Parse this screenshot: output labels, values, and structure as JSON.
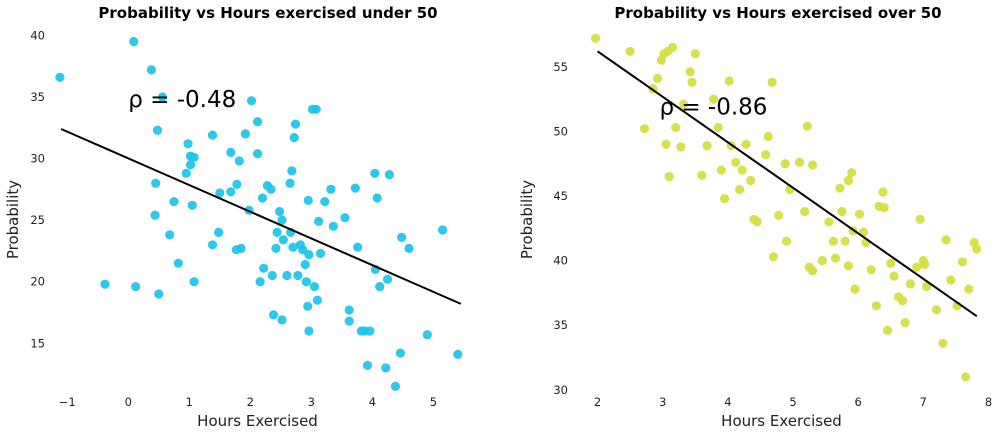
{
  "chart_data": [
    {
      "type": "scatter",
      "title": "Probability vs Hours exercised under 50",
      "xlabel": "Hours Exercised",
      "ylabel": "Probability",
      "xlim": [
        -1.2,
        5.6
      ],
      "ylim": [
        10.8,
        40.6
      ],
      "xticks": [
        "−1",
        "0",
        "1",
        "2",
        "3",
        "4",
        "5"
      ],
      "xtick_values": [
        -1,
        0,
        1,
        2,
        3,
        4,
        5
      ],
      "yticks": [
        "15",
        "20",
        "25",
        "30",
        "35",
        "40"
      ],
      "ytick_values": [
        15,
        20,
        25,
        30,
        35,
        40
      ],
      "grid": false,
      "color": "#1cc3ea",
      "annotation": "ρ = -0.48",
      "annotation_pos": [
        0.0,
        34.2
      ],
      "trendline": {
        "x": [
          -1.1,
          5.45
        ],
        "y": [
          32.4,
          18.2
        ]
      },
      "points": [
        [
          -1.12,
          36.6
        ],
        [
          0.09,
          39.5
        ],
        [
          0.38,
          37.2
        ],
        [
          0.56,
          35.0
        ],
        [
          0.48,
          32.3
        ],
        [
          -0.38,
          19.8
        ],
        [
          0.12,
          19.6
        ],
        [
          0.5,
          19.0
        ],
        [
          0.45,
          28.0
        ],
        [
          0.44,
          25.4
        ],
        [
          0.68,
          23.8
        ],
        [
          0.75,
          26.5
        ],
        [
          0.82,
          21.5
        ],
        [
          0.95,
          28.8
        ],
        [
          1.02,
          30.2
        ],
        [
          0.98,
          31.2
        ],
        [
          1.08,
          30.1
        ],
        [
          1.05,
          26.2
        ],
        [
          1.08,
          20.0
        ],
        [
          1.02,
          29.5
        ],
        [
          1.38,
          31.9
        ],
        [
          1.48,
          24.0
        ],
        [
          1.38,
          23.0
        ],
        [
          1.5,
          27.2
        ],
        [
          1.68,
          30.5
        ],
        [
          1.82,
          29.8
        ],
        [
          1.78,
          27.9
        ],
        [
          1.85,
          22.7
        ],
        [
          1.77,
          22.6
        ],
        [
          1.68,
          27.3
        ],
        [
          1.92,
          32.0
        ],
        [
          1.98,
          25.8
        ],
        [
          2.02,
          34.7
        ],
        [
          2.12,
          33.0
        ],
        [
          2.12,
          30.4
        ],
        [
          2.2,
          26.8
        ],
        [
          2.22,
          21.1
        ],
        [
          2.16,
          20.0
        ],
        [
          2.28,
          27.8
        ],
        [
          2.34,
          27.5
        ],
        [
          2.38,
          17.3
        ],
        [
          2.36,
          20.5
        ],
        [
          2.42,
          22.7
        ],
        [
          2.44,
          24.0
        ],
        [
          2.48,
          25.7
        ],
        [
          2.52,
          16.9
        ],
        [
          2.52,
          25.0
        ],
        [
          2.54,
          23.4
        ],
        [
          2.6,
          20.5
        ],
        [
          2.65,
          28.0
        ],
        [
          2.68,
          29.0
        ],
        [
          2.72,
          31.7
        ],
        [
          2.74,
          32.8
        ],
        [
          2.7,
          22.8
        ],
        [
          2.66,
          24.0
        ],
        [
          2.78,
          20.5
        ],
        [
          2.82,
          23.0
        ],
        [
          2.86,
          22.6
        ],
        [
          2.9,
          21.4
        ],
        [
          2.92,
          20.0
        ],
        [
          2.95,
          26.6
        ],
        [
          2.96,
          22.2
        ],
        [
          2.94,
          18.0
        ],
        [
          2.96,
          16.0
        ],
        [
          3.02,
          34.0
        ],
        [
          3.08,
          34.0
        ],
        [
          3.05,
          19.6
        ],
        [
          3.1,
          18.5
        ],
        [
          3.12,
          24.9
        ],
        [
          3.15,
          22.3
        ],
        [
          3.22,
          26.5
        ],
        [
          3.32,
          27.5
        ],
        [
          3.36,
          24.5
        ],
        [
          3.55,
          25.2
        ],
        [
          3.62,
          17.7
        ],
        [
          3.62,
          16.8
        ],
        [
          3.72,
          27.6
        ],
        [
          3.76,
          22.8
        ],
        [
          3.82,
          16.0
        ],
        [
          3.88,
          16.0
        ],
        [
          3.92,
          13.2
        ],
        [
          3.96,
          16.0
        ],
        [
          4.04,
          28.8
        ],
        [
          4.08,
          26.8
        ],
        [
          4.05,
          21.0
        ],
        [
          4.12,
          19.6
        ],
        [
          4.22,
          13.0
        ],
        [
          4.25,
          20.2
        ],
        [
          4.28,
          28.7
        ],
        [
          4.38,
          11.5
        ],
        [
          4.46,
          14.2
        ],
        [
          4.48,
          23.6
        ],
        [
          4.6,
          22.7
        ],
        [
          4.9,
          15.7
        ],
        [
          5.15,
          24.2
        ],
        [
          5.4,
          14.1
        ]
      ]
    },
    {
      "type": "scatter",
      "title": "Probability vs Hours exercised over 50",
      "xlabel": "Hours Exercised",
      "ylabel": "Probability",
      "xlim": [
        1.7,
        8.1
      ],
      "ylim": [
        29.6,
        58.0
      ],
      "xticks": [
        "2",
        "3",
        "4",
        "5",
        "6",
        "7",
        "8"
      ],
      "xtick_values": [
        2,
        3,
        4,
        5,
        6,
        7,
        8
      ],
      "yticks": [
        "30",
        "35",
        "40",
        "45",
        "50",
        "55"
      ],
      "ytick_values": [
        30,
        35,
        40,
        45,
        50,
        55
      ],
      "grid": false,
      "color": "#d4dd3e",
      "annotation": "ρ = -0.86",
      "annotation_pos": [
        2.95,
        51.3
      ],
      "trendline": {
        "x": [
          2.0,
          7.82
        ],
        "y": [
          56.2,
          35.7
        ]
      },
      "points": [
        [
          1.97,
          57.2
        ],
        [
          2.5,
          56.2
        ],
        [
          2.72,
          50.2
        ],
        [
          2.85,
          53.3
        ],
        [
          2.92,
          54.1
        ],
        [
          2.98,
          55.5
        ],
        [
          3.02,
          56.0
        ],
        [
          3.08,
          56.2
        ],
        [
          3.15,
          56.5
        ],
        [
          3.05,
          49.0
        ],
        [
          3.1,
          46.5
        ],
        [
          3.2,
          50.3
        ],
        [
          3.28,
          48.8
        ],
        [
          3.32,
          52.1
        ],
        [
          3.42,
          54.6
        ],
        [
          3.45,
          53.8
        ],
        [
          3.5,
          56.0
        ],
        [
          3.6,
          46.6
        ],
        [
          3.68,
          48.9
        ],
        [
          3.78,
          52.5
        ],
        [
          3.85,
          50.3
        ],
        [
          3.9,
          47.0
        ],
        [
          3.95,
          44.8
        ],
        [
          4.02,
          53.9
        ],
        [
          4.05,
          48.9
        ],
        [
          4.12,
          47.6
        ],
        [
          4.18,
          45.5
        ],
        [
          4.22,
          47.0
        ],
        [
          4.28,
          49.0
        ],
        [
          4.35,
          46.2
        ],
        [
          4.4,
          43.2
        ],
        [
          4.45,
          43.0
        ],
        [
          4.58,
          48.2
        ],
        [
          4.62,
          49.6
        ],
        [
          4.68,
          53.8
        ],
        [
          4.7,
          40.3
        ],
        [
          4.78,
          43.5
        ],
        [
          4.88,
          47.5
        ],
        [
          4.95,
          45.5
        ],
        [
          4.9,
          41.5
        ],
        [
          5.1,
          47.6
        ],
        [
          5.18,
          43.8
        ],
        [
          5.22,
          50.4
        ],
        [
          5.25,
          39.5
        ],
        [
          5.3,
          39.2
        ],
        [
          5.3,
          47.4
        ],
        [
          5.45,
          40.0
        ],
        [
          5.55,
          43.0
        ],
        [
          5.62,
          41.5
        ],
        [
          5.65,
          40.2
        ],
        [
          5.72,
          45.6
        ],
        [
          5.75,
          43.8
        ],
        [
          5.8,
          41.5
        ],
        [
          5.85,
          46.2
        ],
        [
          5.85,
          39.6
        ],
        [
          5.9,
          46.8
        ],
        [
          5.92,
          42.3
        ],
        [
          5.95,
          37.8
        ],
        [
          6.02,
          43.6
        ],
        [
          6.08,
          42.2
        ],
        [
          6.12,
          41.4
        ],
        [
          6.2,
          39.3
        ],
        [
          6.28,
          36.5
        ],
        [
          6.32,
          44.2
        ],
        [
          6.38,
          45.3
        ],
        [
          6.4,
          44.1
        ],
        [
          6.45,
          34.6
        ],
        [
          6.5,
          39.8
        ],
        [
          6.55,
          38.8
        ],
        [
          6.62,
          37.2
        ],
        [
          6.68,
          36.9
        ],
        [
          6.72,
          35.2
        ],
        [
          6.8,
          38.2
        ],
        [
          6.9,
          39.5
        ],
        [
          6.95,
          43.2
        ],
        [
          7.0,
          40.0
        ],
        [
          7.02,
          39.7
        ],
        [
          7.05,
          38.0
        ],
        [
          7.2,
          36.2
        ],
        [
          7.3,
          33.6
        ],
        [
          7.35,
          41.6
        ],
        [
          7.42,
          38.5
        ],
        [
          7.52,
          36.5
        ],
        [
          7.6,
          39.9
        ],
        [
          7.65,
          31.0
        ],
        [
          7.7,
          37.8
        ],
        [
          7.78,
          41.4
        ],
        [
          7.82,
          40.9
        ]
      ]
    }
  ]
}
